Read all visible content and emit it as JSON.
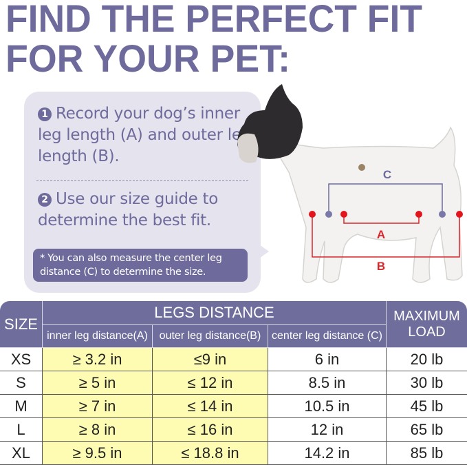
{
  "title": {
    "line1": "FIND THE PERFECT FIT",
    "line2": "FOR YOUR PET:"
  },
  "instructions": {
    "step1_number": "1",
    "step1_text": "Record your dog’s inner leg length (A) and outer leg length (B).",
    "step2_number": "2",
    "step2_text": "Use our size guide to determine the best fit.",
    "note": "* You can also measure the center leg distance (C) to determine the size."
  },
  "diagram": {
    "label_a": "A",
    "label_b": "B",
    "label_c": "C",
    "colors": {
      "inner_outer": "#d9252a",
      "center": "#6e6b9c"
    }
  },
  "table": {
    "size_header": "SIZE",
    "group_header": "LEGS DISTANCE",
    "load_header": "MAXIMUM LOAD",
    "columns": [
      "inner leg distance(A)",
      "outer leg distance(B)",
      "center leg distance (C)"
    ],
    "rows": [
      {
        "size": "XS",
        "inner": "≥ 3.2 in",
        "outer": "≤9 in",
        "center": "6 in",
        "load": "20 lb"
      },
      {
        "size": "S",
        "inner": "≥ 5 in",
        "outer": "≤ 12 in",
        "center": "8.5 in",
        "load": "30 lb"
      },
      {
        "size": "M",
        "inner": "≥ 7 in",
        "outer": "≤ 14 in",
        "center": "10.5 in",
        "load": "45 lb"
      },
      {
        "size": "L",
        "inner": "≥ 8 in",
        "outer": "≤ 16 in",
        "center": "12 in",
        "load": "65 lb"
      },
      {
        "size": "XL",
        "inner": "≥ 9.5 in",
        "outer": "≤ 18.8 in",
        "center": "14.2 in",
        "load": "85 lb"
      }
    ]
  },
  "colors": {
    "brand": "#6e6b9c",
    "bubble": "#e4e3ee",
    "highlight": "#fdfcb2"
  }
}
